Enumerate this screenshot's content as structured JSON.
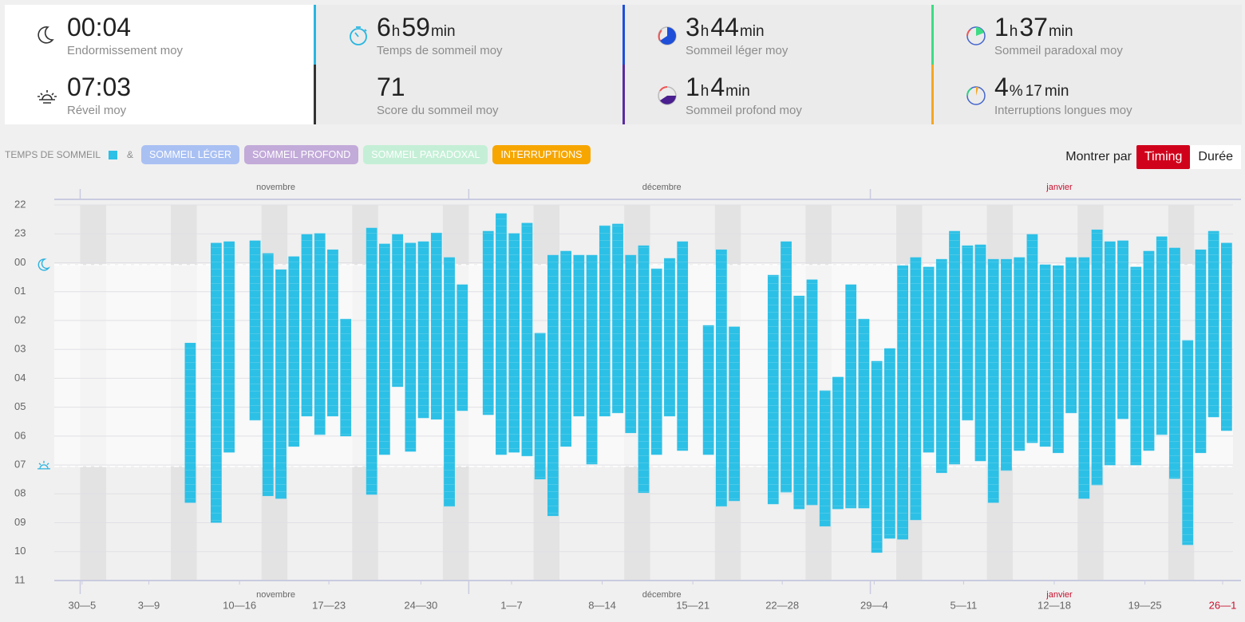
{
  "stats": [
    {
      "value": [
        "00:04"
      ],
      "label": "Endormissement moy"
    },
    {
      "value": [
        "07:03"
      ],
      "label": "Réveil moy"
    },
    {
      "value": [
        "6",
        "h",
        "59",
        "min"
      ],
      "label": "Temps de sommeil moy"
    },
    {
      "value": [
        "71"
      ],
      "label": "Score du sommeil moy"
    },
    {
      "value": [
        "3",
        "h",
        "44",
        "min"
      ],
      "label": "Sommeil léger moy"
    },
    {
      "value": [
        "1",
        "h",
        "4",
        "min"
      ],
      "label": "Sommeil profond moy"
    },
    {
      "value": [
        "1",
        "h",
        "37",
        "min"
      ],
      "label": "Sommeil paradoxal moy"
    },
    {
      "value": [
        "4",
        "%",
        "17",
        "min"
      ],
      "label": "Interruptions longues moy"
    }
  ],
  "legend": {
    "title": "TEMPS DE SOMMEIL",
    "joiner": "&",
    "filters": [
      {
        "label": "SOMMEIL LÉGER",
        "color": "#a9c0f3"
      },
      {
        "label": "SOMMEIL PROFOND",
        "color": "#c2aad9"
      },
      {
        "label": "SOMMEIL PARADOXAL",
        "color": "#c4efd6"
      },
      {
        "label": "INTERRUPTIONS",
        "color": "#f7a600"
      }
    ]
  },
  "toggle": {
    "label": "Montrer par",
    "options": [
      "Timing",
      "Durée"
    ],
    "active": 0
  },
  "chart_data": {
    "type": "range-bar",
    "color": "#2cc0e6",
    "grid": true,
    "xlim": [
      0,
      91
    ],
    "ylim": [
      35,
      22
    ],
    "yticks": [
      22,
      23,
      {
        "value": 24,
        "label": "00"
      },
      {
        "value": 25,
        "label": "01"
      },
      {
        "value": 26,
        "label": "02"
      },
      {
        "value": 27,
        "label": "03"
      },
      {
        "value": 28,
        "label": "04"
      },
      {
        "value": 29,
        "label": "05"
      },
      {
        "value": 30,
        "label": "06"
      },
      {
        "value": 31,
        "label": "07"
      },
      {
        "value": 32,
        "label": "08"
      },
      {
        "value": 33,
        "label": "09"
      },
      {
        "value": 34,
        "label": "10"
      },
      {
        "value": 35,
        "label": "11"
      }
    ],
    "xticks": [
      {
        "value": 2.15,
        "label": "30—5"
      },
      {
        "value": 7.3,
        "label": "3—9"
      },
      {
        "value": 14.3,
        "label": "10—16"
      },
      {
        "value": 21.2,
        "label": "17—23"
      },
      {
        "value": 28.3,
        "label": "24—30"
      },
      {
        "value": 35.3,
        "label": "1—7"
      },
      {
        "value": 42.3,
        "label": "8—14"
      },
      {
        "value": 49.3,
        "label": "15—21"
      },
      {
        "value": 56.2,
        "label": "22—28"
      },
      {
        "value": 63.3,
        "label": "29—4"
      },
      {
        "value": 70.2,
        "label": "5—11"
      },
      {
        "value": 77.2,
        "label": "12—18"
      },
      {
        "value": 84.2,
        "label": "19—25"
      },
      {
        "value": 90.2,
        "label": "26—1",
        "color": "#c8102e"
      }
    ],
    "months": [
      {
        "value": 17.1,
        "label": "novembre"
      },
      {
        "value": 46.9,
        "label": "décembre"
      },
      {
        "value": 77.6,
        "label": "janvier",
        "color": "#c8102e"
      }
    ],
    "month_bounds": [
      2,
      32,
      63
    ],
    "avg_band": [
      24.07,
      31.05
    ],
    "x": [
      10,
      12,
      13,
      15,
      16,
      17,
      18,
      19,
      20,
      21,
      22,
      24,
      25,
      26,
      27,
      28,
      29,
      30,
      31,
      33,
      34,
      35,
      36,
      37,
      38,
      39,
      40,
      41,
      42,
      43,
      44,
      45,
      46,
      47,
      48,
      50,
      51,
      52,
      55,
      56,
      57,
      58,
      59,
      60,
      61,
      62,
      63,
      64,
      65,
      66,
      67,
      68,
      69,
      70,
      71,
      72,
      73,
      74,
      75,
      76,
      77,
      78,
      79,
      80,
      81,
      82,
      83,
      84,
      85,
      86,
      87,
      88,
      89,
      90
    ],
    "start": [
      26.78,
      23.32,
      23.27,
      23.24,
      23.68,
      24.24,
      23.79,
      23.02,
      22.99,
      23.55,
      25.95,
      22.8,
      23.35,
      23.02,
      23.32,
      23.27,
      22.97,
      23.82,
      24.76,
      22.91,
      22.3,
      22.99,
      22.63,
      26.44,
      23.74,
      23.6,
      23.74,
      23.74,
      22.72,
      22.66,
      23.74,
      23.41,
      24.21,
      23.85,
      23.27,
      26.17,
      23.55,
      26.22,
      24.43,
      23.27,
      25.15,
      24.59,
      28.43,
      27.96,
      24.76,
      25.95,
      27.41,
      26.97,
      24.1,
      23.82,
      24.15,
      23.88,
      22.91,
      23.41,
      23.38,
      23.88,
      23.88,
      23.82,
      23.02,
      24.07,
      24.1,
      23.82,
      23.82,
      22.86,
      23.27,
      23.24,
      24.15,
      23.6,
      23.1,
      23.49,
      26.69,
      23.55,
      22.91,
      23.32
    ],
    "end": [
      32.3,
      32.99,
      30.56,
      29.45,
      32.07,
      32.16,
      30.36,
      29.31,
      29.95,
      29.31,
      30.0,
      32.02,
      30.64,
      28.29,
      30.53,
      29.37,
      29.42,
      32.43,
      29.12,
      29.26,
      30.64,
      30.56,
      30.69,
      31.49,
      32.76,
      30.36,
      29.31,
      30.97,
      29.31,
      29.2,
      29.89,
      31.96,
      30.64,
      29.31,
      30.5,
      30.64,
      32.43,
      32.24,
      32.35,
      31.94,
      32.52,
      32.38,
      33.12,
      32.52,
      32.49,
      32.49,
      34.03,
      33.54,
      33.57,
      32.9,
      30.56,
      31.27,
      30.97,
      29.45,
      30.86,
      32.3,
      31.19,
      30.5,
      30.23,
      30.36,
      30.58,
      29.2,
      32.16,
      31.69,
      31.0,
      29.4,
      31.0,
      30.5,
      29.95,
      31.47,
      33.76,
      30.58,
      29.34,
      29.81
    ]
  }
}
